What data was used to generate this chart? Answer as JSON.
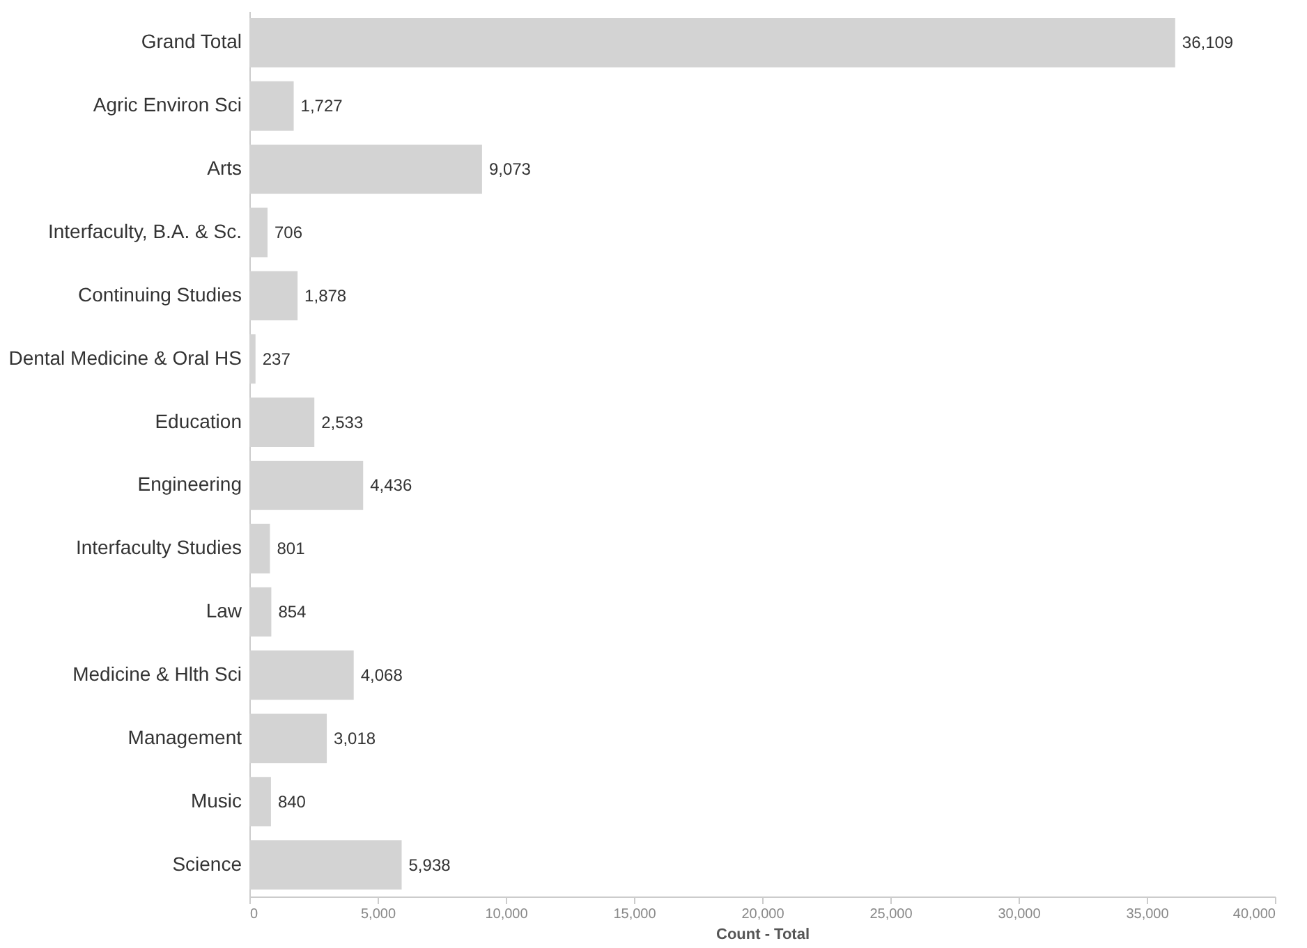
{
  "chart_data": {
    "type": "bar",
    "orientation": "horizontal",
    "xlabel": "Count - Total",
    "categories": [
      "Grand Total",
      "Agric Environ Sci",
      "Arts",
      "Interfaculty, B.A. & Sc.",
      "Continuing Studies",
      "Dental Medicine & Oral HS",
      "Education",
      "Engineering",
      "Interfaculty Studies",
      "Law",
      "Medicine & Hlth Sci",
      "Management",
      "Music",
      "Science"
    ],
    "values": [
      36109,
      1727,
      9073,
      706,
      1878,
      237,
      2533,
      4436,
      801,
      854,
      4068,
      3018,
      840,
      5938
    ],
    "value_labels": [
      "36,109",
      "1,727",
      "9,073",
      "706",
      "1,878",
      "237",
      "2,533",
      "4,436",
      "801",
      "854",
      "4,068",
      "3,018",
      "840",
      "5,938"
    ],
    "color": "#d3d3d3",
    "xlim": [
      0,
      40000
    ],
    "xticks": [
      0,
      {
        "value": 5000,
        "label": "5,000"
      },
      {
        "value": 10000,
        "label": "10,000"
      },
      {
        "value": 15000,
        "label": "15,000"
      },
      {
        "value": 20000,
        "label": "20,000"
      },
      {
        "value": 25000,
        "label": "25,000"
      },
      {
        "value": 30000,
        "label": "30,000"
      },
      {
        "value": 35000,
        "label": "35,000"
      },
      {
        "value": 40000,
        "label": "40,000"
      }
    ],
    "grid": false
  }
}
